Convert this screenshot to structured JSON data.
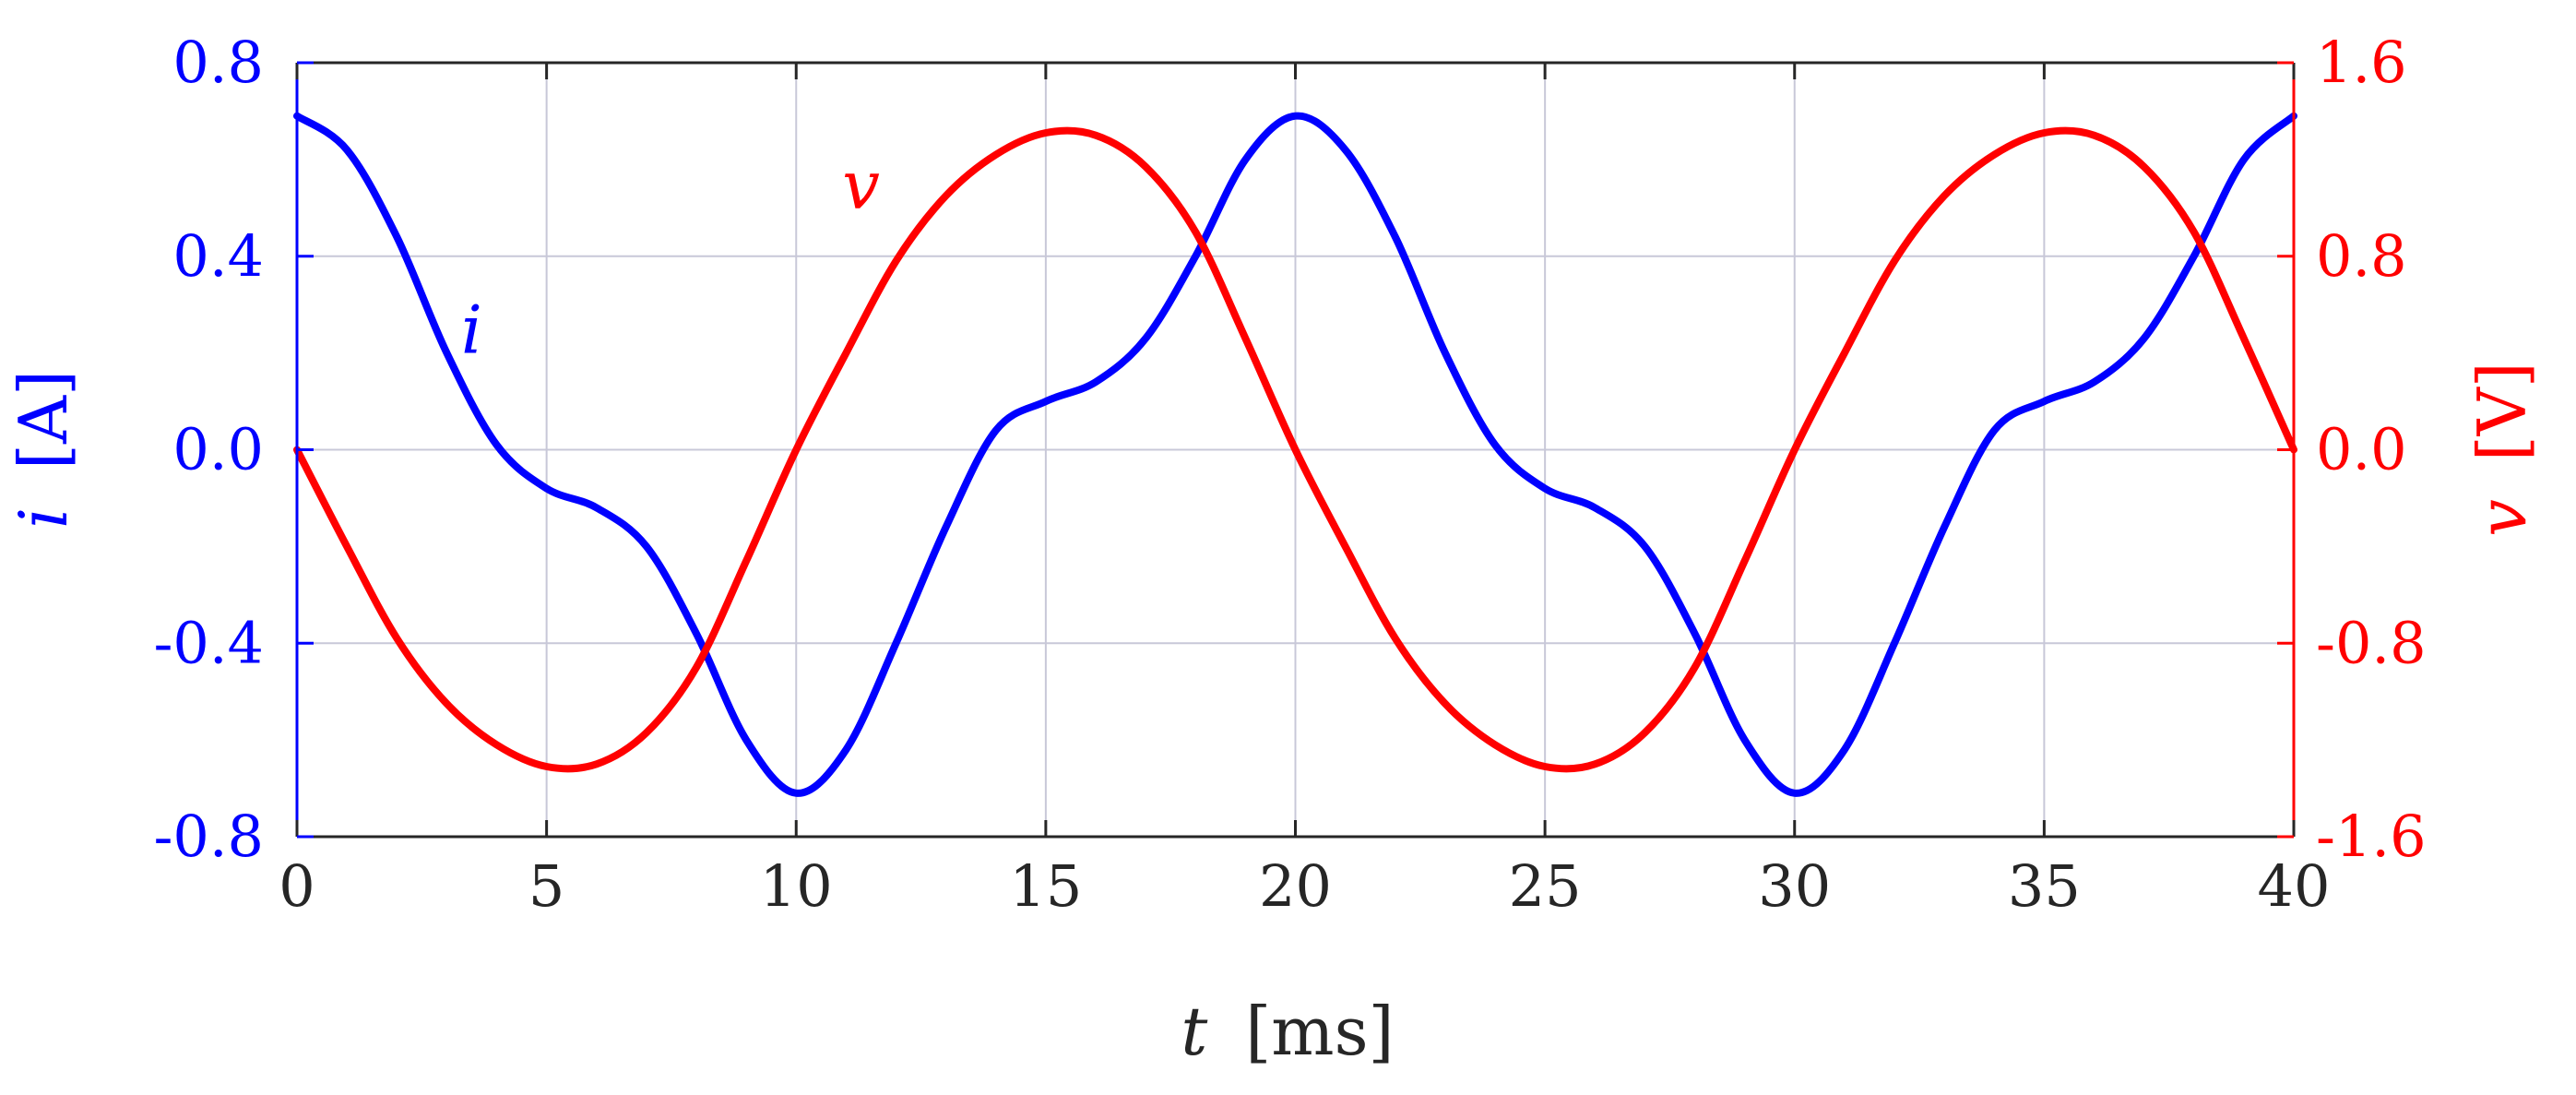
{
  "chart_data": {
    "type": "line",
    "title": "",
    "xlabel_symbol": "t",
    "xlabel_unit": "[ms]",
    "ylabel_left_symbol": "i",
    "ylabel_left_unit": "[A]",
    "ylabel_right_symbol": "v",
    "ylabel_right_unit": "[V]",
    "xlim": [
      0,
      40
    ],
    "ylim_left": [
      -0.8,
      0.8
    ],
    "ylim_right": [
      -1.6,
      1.6
    ],
    "x_ticks": [
      "0",
      "5",
      "10",
      "15",
      "20",
      "25",
      "30",
      "35",
      "40"
    ],
    "y_left_ticks": [
      "-0.8",
      "-0.4",
      "0.0",
      "0.4",
      "0.8"
    ],
    "y_right_ticks": [
      "-1.6",
      "-0.8",
      "0.0",
      "0.8",
      "1.6"
    ],
    "grid": true,
    "colors": {
      "current": "#0000ff",
      "voltage": "#ff0000",
      "grid": "#c8c8d8",
      "axes": "#262626"
    },
    "series": [
      {
        "name": "i",
        "axis": "left",
        "x": [
          0,
          1,
          2,
          3,
          4,
          5,
          6,
          7,
          8,
          9,
          10,
          11,
          12,
          13,
          14,
          15,
          16,
          17,
          18,
          19,
          20,
          21,
          22,
          23,
          24,
          25,
          26,
          27,
          28,
          29,
          30,
          31,
          32,
          33,
          34,
          35,
          36,
          37,
          38,
          39,
          40
        ],
        "values": [
          0.69,
          0.62,
          0.44,
          0.2,
          0.01,
          -0.08,
          -0.12,
          -0.2,
          -0.38,
          -0.6,
          -0.71,
          -0.62,
          -0.4,
          -0.16,
          0.04,
          0.1,
          0.14,
          0.23,
          0.4,
          0.6,
          0.69,
          0.62,
          0.44,
          0.2,
          0.01,
          -0.08,
          -0.12,
          -0.2,
          -0.38,
          -0.6,
          -0.71,
          -0.62,
          -0.4,
          -0.16,
          0.04,
          0.1,
          0.14,
          0.23,
          0.4,
          0.6,
          0.69
        ]
      },
      {
        "name": "v",
        "axis": "right",
        "x": [
          0,
          1,
          2,
          3,
          4,
          5,
          6,
          7,
          8,
          9,
          10,
          11,
          12,
          13,
          14,
          15,
          16,
          17,
          18,
          19,
          20,
          21,
          22,
          23,
          24,
          25,
          26,
          27,
          28,
          29,
          30,
          31,
          32,
          33,
          34,
          35,
          36,
          37,
          38,
          39,
          40
        ],
        "values": [
          0.0,
          -0.4,
          -0.78,
          -1.05,
          -1.22,
          -1.31,
          -1.3,
          -1.17,
          -0.9,
          -0.46,
          0.0,
          0.4,
          0.78,
          1.05,
          1.22,
          1.31,
          1.3,
          1.17,
          0.9,
          0.46,
          0.0,
          -0.4,
          -0.78,
          -1.05,
          -1.22,
          -1.31,
          -1.3,
          -1.17,
          -0.9,
          -0.46,
          0.0,
          0.4,
          0.78,
          1.05,
          1.22,
          1.31,
          1.3,
          1.17,
          0.9,
          0.46,
          0.0
        ]
      }
    ],
    "annotations": [
      {
        "text": "i",
        "series": "i",
        "x": 3.5,
        "y": 0.2,
        "axis": "left"
      },
      {
        "text": "v",
        "series": "v",
        "x": 11.3,
        "y": 1.0,
        "axis": "right"
      }
    ]
  }
}
